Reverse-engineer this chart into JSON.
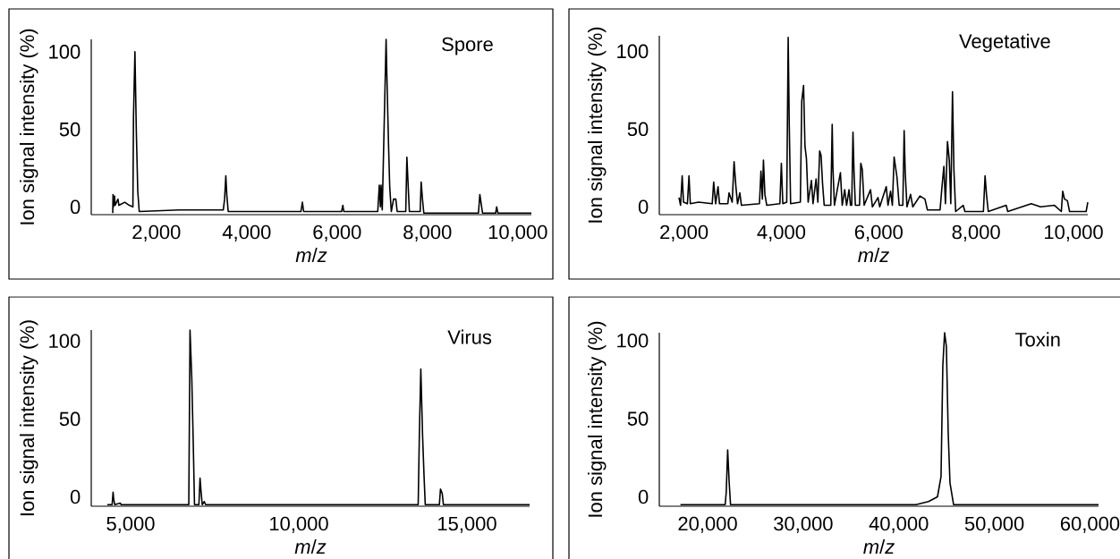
{
  "chart_data": [
    {
      "type": "line",
      "title": "Spore",
      "xlabel": "*m*/*z*",
      "ylabel": "Ion signal intensity (%)",
      "color": "#000000",
      "x": [
        1034,
        1040,
        1048,
        1075,
        1085,
        1150,
        1170,
        1300,
        1400,
        1480,
        1493,
        1525,
        1556,
        1588,
        1620,
        2500,
        3480,
        3510,
        3537,
        3560,
        3590,
        5200,
        5232,
        5260,
        6100,
        6127,
        6150,
        6900,
        6935,
        6960,
        6974,
        7000,
        7085,
        7105,
        7140,
        7165,
        7200,
        7251,
        7300,
        7330,
        7520,
        7545,
        7570,
        7600,
        7840,
        7861,
        7890,
        7920,
        9130,
        9160,
        9190,
        9220,
        9510,
        9533,
        9560,
        10300
      ],
      "values": [
        -4,
        8,
        0,
        7,
        1,
        5,
        1,
        3,
        1,
        0,
        58,
        100,
        48,
        10,
        -3,
        -2,
        -2,
        5,
        20,
        7,
        -3,
        -3,
        3,
        -3,
        -3,
        1,
        -3,
        -3,
        14,
        0,
        14,
        -2,
        108,
        81,
        39,
        13,
        -3,
        5,
        5,
        -3,
        -3,
        32,
        16,
        -3,
        -3,
        16,
        5,
        -4,
        -4,
        8,
        2,
        -4,
        -4,
        0,
        -4,
        -4
      ],
      "xlim": [
        558,
        10301
      ],
      "ylim": [
        -5,
        108
      ],
      "xticks": [
        {
          "value": 2000,
          "label": "2,000"
        },
        {
          "value": 4000,
          "label": "4,000"
        },
        {
          "value": 6000,
          "label": "6,000"
        },
        {
          "value": 8000,
          "label": "8,000"
        },
        {
          "value": 10000,
          "label": "10,000"
        }
      ],
      "yticks": [
        0,
        50,
        100
      ]
    },
    {
      "type": "line",
      "title": "Vegetative",
      "xlabel": "*m*/*z*",
      "ylabel": "Ion signal intensity (%)",
      "color": "#000000",
      "x": [
        1897,
        1930,
        1963,
        1990,
        2070,
        2103,
        2130,
        2300,
        2580,
        2610,
        2650,
        2699,
        2730,
        2900,
        2926,
        2990,
        3029,
        3066,
        3100,
        3147,
        3180,
        3550,
        3581,
        3610,
        3632,
        3662,
        3700,
        3970,
        4000,
        4030,
        4110,
        4140,
        4162,
        4190,
        4390,
        4419,
        4456,
        4485,
        4515,
        4550,
        4618,
        4650,
        4713,
        4750,
        4787,
        4816,
        4846,
        4880,
        5015,
        5044,
        5059,
        5090,
        5213,
        5250,
        5301,
        5340,
        5390,
        5420,
        5445,
        5471,
        5493,
        5520,
        5605,
        5632,
        5662,
        5700,
        5831,
        5870,
        5985,
        6020,
        6154,
        6190,
        6243,
        6280,
        6316,
        6375,
        6420,
        6495,
        6522,
        6544,
        6580,
        6654,
        6700,
        6846,
        6949,
        7000,
        7260,
        7294,
        7338,
        7370,
        7412,
        7449,
        7480,
        7515,
        7544,
        7580,
        7735,
        7770,
        8150,
        8184,
        8213,
        8250,
        8618,
        8650,
        9132,
        9324,
        9610,
        9750,
        9779,
        9816,
        9875,
        9920,
        10260,
        10294
      ],
      "values": [
        6,
        1,
        20,
        3,
        2,
        20,
        2,
        3,
        2,
        16,
        2,
        13,
        2,
        2,
        9,
        3,
        29,
        13,
        2,
        9,
        1,
        2,
        23,
        5,
        30,
        8,
        1,
        2,
        28,
        2,
        3,
        109,
        53,
        2,
        3,
        68,
        78,
        39,
        31,
        3,
        17,
        2,
        18,
        3,
        36,
        33,
        15,
        1,
        1,
        53,
        25,
        1,
        22,
        1,
        11,
        1,
        11,
        1,
        1,
        48,
        22,
        1,
        1,
        28,
        24,
        1,
        11,
        0,
        6,
        0,
        13,
        1,
        10,
        1,
        32,
        19,
        1,
        1,
        49,
        22,
        0,
        8,
        0,
        7,
        5,
        -2,
        -2,
        11,
        26,
        2,
        42,
        30,
        2,
        74,
        24,
        -3,
        1,
        -3,
        -3,
        20,
        8,
        -3,
        1,
        -3,
        2,
        0,
        1,
        -3,
        10,
        5,
        4,
        -3,
        -3,
        3
      ],
      "xlim": [
        1493,
        10294
      ],
      "ylim": [
        -5,
        110
      ],
      "xticks": [
        {
          "value": 2000,
          "label": "2,000"
        },
        {
          "value": 4000,
          "label": "4,000"
        },
        {
          "value": 6000,
          "label": "6,000"
        },
        {
          "value": 8000,
          "label": "8,000"
        },
        {
          "value": 10000,
          "label": "10,000"
        }
      ],
      "yticks": [
        0,
        50,
        100
      ]
    },
    {
      "type": "line",
      "title": "Virus",
      "xlabel": "*m*/*z*",
      "ylabel": "Ion signal intensity (%)",
      "color": "#000000",
      "x": [
        4309,
        4450,
        4479,
        4500,
        4530,
        4691,
        4720,
        6730,
        6766,
        6819,
        6862,
        6900,
        7030,
        7064,
        7096,
        7130,
        7191,
        7230,
        13550,
        13585,
        13628,
        13681,
        13723,
        13760,
        14180,
        14213,
        14266,
        14300,
        16862
      ],
      "values": [
        -5,
        -5,
        3,
        -2,
        -5,
        -4,
        -5,
        -5,
        107,
        76,
        35,
        -5,
        -5,
        12,
        3,
        -5,
        -3,
        -5,
        -5,
        40,
        82,
        39,
        14,
        -5,
        -5,
        5,
        2,
        -5,
        -5
      ],
      "xlim": [
        3830,
        16862
      ],
      "ylim": [
        -6,
        107
      ],
      "xticks": [
        {
          "value": 5000,
          "label": "5,000"
        },
        {
          "value": 10000,
          "label": "10,000"
        },
        {
          "value": 15000,
          "label": "15,000"
        }
      ],
      "yticks": [
        0,
        50,
        100
      ]
    },
    {
      "type": "line",
      "title": "Toxin",
      "xlabel": "*m*/*z*",
      "ylabel": "Ion signal intensity (%)",
      "color": "#000000",
      "x": [
        17154,
        21835,
        21947,
        22097,
        22247,
        22397,
        41796,
        43107,
        44043,
        44417,
        44605,
        44792,
        44979,
        45167,
        45354,
        45728,
        60895
      ],
      "values": [
        -5,
        -5,
        3,
        30,
        10,
        -5,
        -5,
        -3,
        0,
        13,
        84,
        105,
        96,
        41,
        9,
        -5,
        -5
      ],
      "xlim": [
        14944,
        60895
      ],
      "ylim": [
        -6,
        105
      ],
      "xticks": [
        {
          "value": 20000,
          "label": "20,000"
        },
        {
          "value": 30000,
          "label": "30,000"
        },
        {
          "value": 40000,
          "label": "40,000"
        },
        {
          "value": 50000,
          "label": "50,000"
        },
        {
          "value": 60000,
          "label": "60,000"
        }
      ],
      "yticks": [
        0,
        50,
        100
      ]
    }
  ]
}
